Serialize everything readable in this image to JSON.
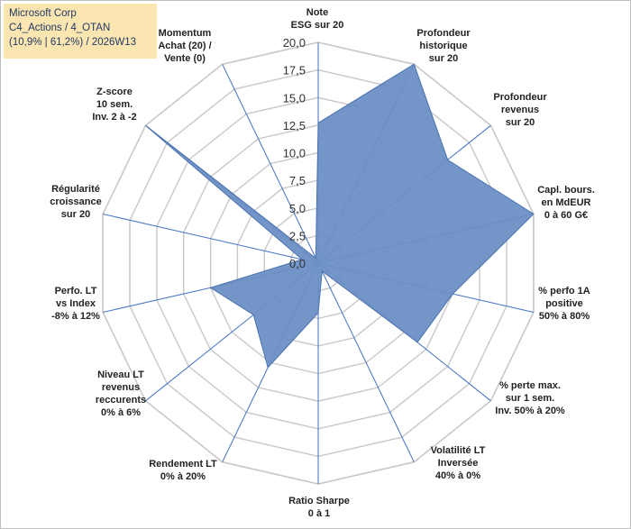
{
  "header": {
    "line1": "Microsoft Corp",
    "line2": "C4_Actions / 4_OTAN",
    "line3": "(10,9% | 61,2%) / 2026W13"
  },
  "colors": {
    "fill": "#6b8fc4",
    "stroke": "#4a73b0",
    "grid": "#c8c8c8",
    "axis": "#4472c4",
    "header_bg": "#fbe5b0"
  },
  "chart_data": {
    "type": "radar",
    "range": [
      0,
      20
    ],
    "ticks": [
      "0,0",
      "2,5",
      "5,0",
      "7,5",
      "10,0",
      "12,5",
      "15,0",
      "17,5",
      "20,0"
    ],
    "axes": [
      {
        "label": [
          "Note",
          "ESG sur 20"
        ],
        "value": 12.7
      },
      {
        "label": [
          "Profondeur",
          "historique",
          "sur 20"
        ],
        "value": 20
      },
      {
        "label": [
          "Profondeur",
          "revenus",
          "sur 20"
        ],
        "value": 15
      },
      {
        "label": [
          "Capl. bours.",
          "en MdEUR",
          "0 à 60 G€"
        ],
        "value": 20
      },
      {
        "label": [
          "% perfo 1A",
          "positive",
          "50% à 80%"
        ],
        "value": 12.5
      },
      {
        "label": [
          "% perte max.",
          "sur 1 sem.",
          "Inv. 50% à 20%"
        ],
        "value": 11.5
      },
      {
        "label": [
          "Volatilité LT",
          "Inversée",
          "40% à 0%"
        ],
        "value": 0.8
      },
      {
        "label": [
          "Ratio Sharpe",
          "0 à 1"
        ],
        "value": 4.5
      },
      {
        "label": [
          "Rendement LT",
          "0% à 20%"
        ],
        "value": 10.5
      },
      {
        "label": [
          "Niveau LT",
          "revenus",
          "reccurents",
          "0% à 6%"
        ],
        "value": 7.5
      },
      {
        "label": [
          "Perfo. LT",
          "vs Index",
          "-8% à 12%"
        ],
        "value": 10
      },
      {
        "label": [
          "Régularité",
          "croissance",
          "sur 20"
        ],
        "value": 1.5
      },
      {
        "label": [
          "Z-score",
          "10 sem.",
          "Inv. 2 à -2"
        ],
        "value": 20
      },
      {
        "label": [
          "Momentum",
          "Achat (20) /",
          "Vente (0)"
        ],
        "value": 0.5
      }
    ]
  }
}
